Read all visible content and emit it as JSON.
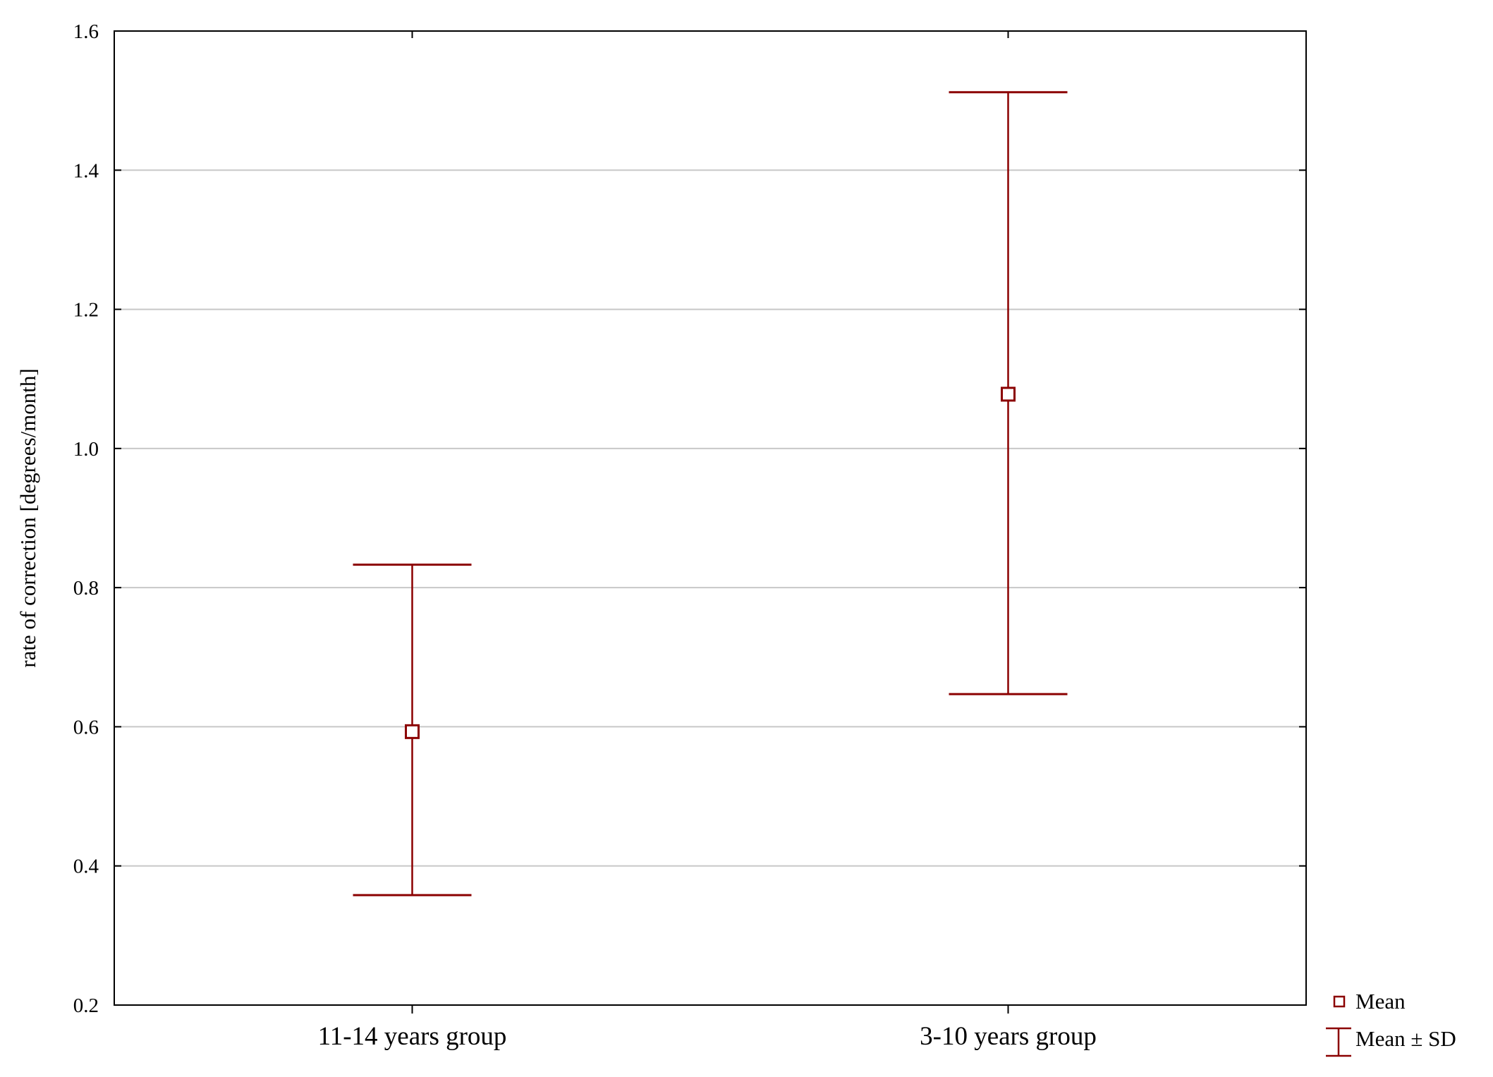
{
  "chart_data": {
    "type": "scatter",
    "title": "",
    "xlabel": "",
    "ylabel": "rate of correction [degrees/month]",
    "categories": [
      "11-14 years group",
      "3-10 years group"
    ],
    "series": [
      {
        "name": "Mean",
        "values": [
          0.593,
          1.078
        ],
        "error_low": [
          0.358,
          0.647
        ],
        "error_high": [
          0.833,
          1.512
        ]
      }
    ],
    "ylim": [
      0.2,
      1.6
    ],
    "yticks": [
      "0.2",
      "0.4",
      "0.6",
      "0.8",
      "1.0",
      "1.2",
      "1.4",
      "1.6"
    ],
    "grid": "horizontal",
    "legend": {
      "placement": "bottom-right",
      "items": [
        "Mean",
        "Mean ± SD"
      ]
    },
    "colors": {
      "series": "#8b0000",
      "grid": "#c8c8c8",
      "axis": "#000000"
    }
  }
}
